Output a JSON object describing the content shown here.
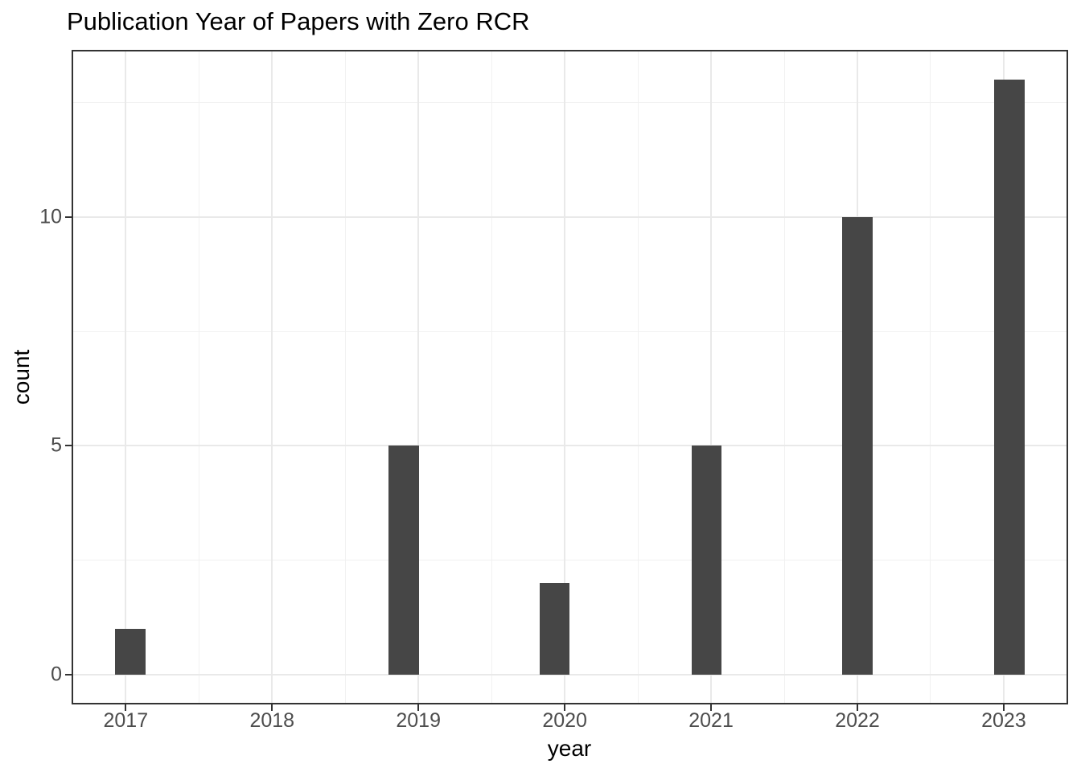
{
  "title": "Publication Year of Papers with Zero RCR",
  "chart_data": {
    "type": "histogram",
    "title": "Publication Year of Papers with Zero RCR",
    "xlabel": "year",
    "ylabel": "count",
    "categories": [
      "2017",
      "2018",
      "2019",
      "2020",
      "2021",
      "2022",
      "2023"
    ],
    "values": [
      1,
      0,
      5,
      2,
      5,
      10,
      13
    ],
    "bins": [
      {
        "x": 2017.03,
        "count": 1
      },
      {
        "x": 2018.9,
        "count": 5
      },
      {
        "x": 2019.93,
        "count": 2
      },
      {
        "x": 2020.97,
        "count": 5
      },
      {
        "x": 2022.0,
        "count": 10
      },
      {
        "x": 2023.04,
        "count": 13
      }
    ],
    "bin_width": 0.207,
    "x_ticks": [
      2017,
      2018,
      2019,
      2020,
      2021,
      2022,
      2023
    ],
    "x_tick_labels": [
      "2017",
      "2018",
      "2019",
      "2020",
      "2021",
      "2022",
      "2023"
    ],
    "y_ticks": [
      0,
      5,
      10
    ],
    "y_tick_labels": [
      "0",
      "5",
      "10"
    ],
    "x_minor_breaks": [
      2017.5,
      2018.5,
      2019.5,
      2020.5,
      2021.5,
      2022.5
    ],
    "y_minor_breaks": [
      2.5,
      7.5,
      12.5
    ],
    "xlim": [
      2016.63,
      2023.44
    ],
    "ylim": [
      -0.65,
      13.65
    ],
    "grid": true,
    "legend": "none",
    "colors": {
      "bar": "#464646",
      "grid_major": "#E9E9E9",
      "grid_minor": "#F1F1F1",
      "panel_border": "#333333",
      "tick_mark": "#333333",
      "tick_label": "#4D4D4D",
      "axis_title": "#000000",
      "title": "#000000",
      "background": "#FFFFFF"
    }
  }
}
